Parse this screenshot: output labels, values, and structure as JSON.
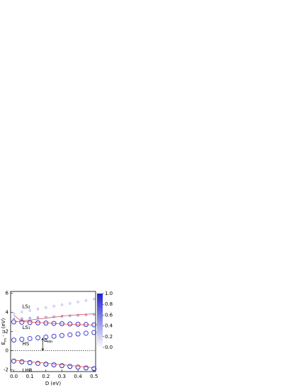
{
  "chart_data": {
    "type": "scatter",
    "xlabel": "D (eV)",
    "ylabel": {
      "main": "E",
      "sub": "m",
      "rest": " - μ (eV)"
    },
    "x": [
      0,
      0.05,
      0.1,
      0.15,
      0.2,
      0.25,
      0.3,
      0.35,
      0.4,
      0.45,
      0.5
    ],
    "xlim": [
      -0.02,
      0.51
    ],
    "xticks": [
      {
        "value": 0,
        "label": "0.0"
      },
      {
        "value": 0.1,
        "label": "0.1"
      },
      {
        "value": 0.2,
        "label": "0.2"
      },
      {
        "value": 0.3,
        "label": "0.3"
      },
      {
        "value": 0.4,
        "label": "0.4"
      },
      {
        "value": 0.5,
        "label": "0.5"
      }
    ],
    "ylim": [
      -2.2,
      6.2
    ],
    "yticks": [
      -2,
      0,
      2,
      4,
      6
    ],
    "reference_line": 0,
    "series": [
      {
        "name": "LHB",
        "style": "circles",
        "color": "#2626c8",
        "values": [
          -1.1,
          -1.18,
          -1.26,
          -1.34,
          -1.42,
          -1.5,
          -1.58,
          -1.66,
          -1.74,
          -1.82,
          -1.9
        ]
      },
      {
        "name": "HS",
        "style": "circles",
        "color": "#4040d4",
        "values": [
          1.1,
          1.18,
          1.26,
          1.34,
          1.42,
          1.5,
          1.58,
          1.66,
          1.74,
          1.82,
          1.9
        ]
      },
      {
        "name": "LS₁",
        "style": "circles",
        "color": "#3434cc",
        "values": [
          3.0,
          2.97,
          2.94,
          2.91,
          2.88,
          2.85,
          2.82,
          2.79,
          2.76,
          2.73,
          2.7
        ]
      },
      {
        "name": "LS₂",
        "style": "dots",
        "color": "#b4b4ec",
        "values": [
          3.9,
          4.05,
          4.2,
          4.35,
          4.5,
          4.65,
          4.8,
          4.95,
          5.1,
          5.25,
          5.4
        ]
      },
      {
        "style": "dots",
        "color": "#7a7adc",
        "values": [
          3.3,
          3.35,
          3.4,
          3.45,
          3.5,
          3.55,
          3.6,
          3.65,
          3.7,
          3.75,
          3.8
        ]
      },
      {
        "style": "line",
        "color": "#e05050",
        "values": [
          3.7,
          3.05,
          3.0,
          2.95,
          2.9,
          2.85,
          2.8,
          2.75,
          2.72,
          2.7,
          2.68
        ]
      },
      {
        "style": "line",
        "color": "#e05050",
        "values": [
          3.0,
          3.1,
          3.2,
          3.3,
          3.4,
          3.5,
          3.6,
          3.7,
          3.75,
          3.8,
          3.85
        ]
      },
      {
        "style": "line",
        "color": "#e05050",
        "values": [
          -1.0,
          -1.08,
          -1.16,
          -1.24,
          -1.32,
          -1.4,
          -1.48,
          -1.56,
          -1.64,
          -1.72,
          -1.8
        ]
      }
    ],
    "label_positions": [
      [
        0.0,
        -2.1
      ],
      [
        0.0,
        0.7
      ],
      [
        0.0,
        2.4
      ],
      [
        0.0,
        4.6
      ]
    ],
    "gap_annotation": {
      "main": "Δ",
      "sub": "MH",
      "x": 0.18,
      "from": 0,
      "to": 1.3
    },
    "colorbar": {
      "lim": [
        0,
        1
      ],
      "low_color": "#ffffff",
      "high_color": "#2020d0",
      "ticks": [
        {
          "value": 1,
          "label": "1.0"
        },
        {
          "value": 0.8,
          "label": "0.8"
        },
        {
          "value": 0.6,
          "label": "0.6"
        },
        {
          "value": 0.4,
          "label": "0.4"
        },
        {
          "value": 0.2,
          "label": "0.2"
        },
        {
          "value": 0,
          "label": "0.0"
        }
      ]
    }
  }
}
